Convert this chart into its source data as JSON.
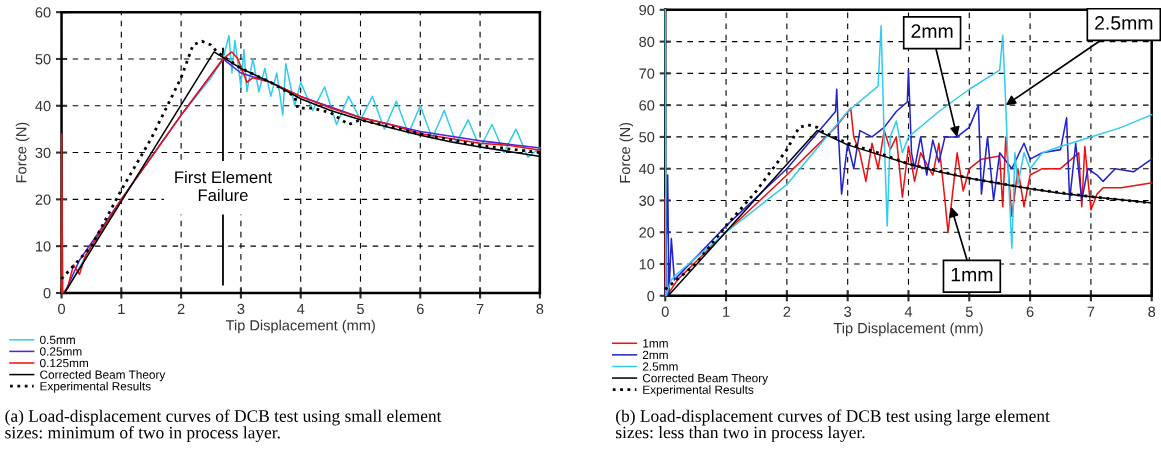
{
  "chart_data": [
    {
      "type": "line",
      "xlabel": "Tip Displacement (mm)",
      "ylabel": "Force (N)",
      "xlim": [
        0,
        8
      ],
      "ylim": [
        0,
        60
      ],
      "xticks": [
        0,
        1,
        2,
        3,
        4,
        5,
        6,
        7,
        8
      ],
      "yticks": [
        0,
        10,
        20,
        30,
        40,
        50,
        60
      ],
      "grid": true,
      "legend": "bottom left",
      "series": [
        {
          "name": "0.5mm",
          "color": "#33ccee",
          "line_style": "solid",
          "x": [
            0.1,
            0.5,
            1,
            1.5,
            2,
            2.5,
            2.7,
            2.8,
            2.85,
            2.9,
            3.0,
            3.05,
            3.1,
            3.2,
            3.3,
            3.4,
            3.5,
            3.6,
            3.7,
            3.75,
            3.9,
            4.0,
            4.2,
            4.4,
            4.6,
            4.8,
            5.0,
            5.2,
            5.4,
            5.6,
            5.8,
            6.0,
            6.2,
            6.4,
            6.6,
            6.8,
            7.0,
            7.2,
            7.4,
            7.6,
            7.8,
            8.0
          ],
          "values": [
            1,
            10,
            20,
            29,
            38,
            46,
            50,
            55,
            47,
            54,
            44,
            52,
            43,
            50,
            43,
            48,
            42,
            47,
            38,
            49,
            40,
            45,
            39,
            44,
            36,
            42,
            37,
            42,
            35,
            41,
            34,
            40,
            33,
            39,
            32,
            37,
            31,
            36,
            30,
            35,
            29,
            31
          ]
        },
        {
          "name": "0.25mm",
          "color": "#5522dd",
          "line_style": "solid",
          "x": [
            0.05,
            0.3,
            1,
            2,
            2.7,
            3,
            3.5,
            4,
            5,
            6,
            7,
            8
          ],
          "values": [
            0,
            7,
            20,
            38,
            50,
            47,
            45,
            42,
            37.5,
            34.5,
            32.5,
            31
          ]
        },
        {
          "name": "0.125mm",
          "color": "#ee1111",
          "line_style": "solid",
          "x": [
            0,
            0,
            0.02,
            0.1,
            0.2,
            0.3,
            0.4,
            1,
            2,
            2.7,
            2.85,
            2.95,
            3.1,
            3.2,
            3.5,
            4,
            4.5,
            5,
            5.5,
            6,
            6.5,
            7,
            7.5,
            8
          ],
          "values": [
            0,
            34,
            0,
            1,
            6,
            4,
            8,
            20,
            38,
            50,
            51.5,
            50,
            45,
            46,
            45,
            42,
            39.5,
            37.5,
            36,
            34,
            33,
            32,
            31.5,
            30.5
          ]
        },
        {
          "name": "Corrected Beam Theory",
          "color": "#000000",
          "line_style": "solid",
          "x": [
            0.05,
            2.55,
            3,
            3.5,
            4,
            4.5,
            5,
            5.5,
            6,
            6.5,
            7,
            7.5,
            8
          ],
          "values": [
            0,
            51.5,
            48,
            45,
            41.5,
            39,
            37,
            35.3,
            33.7,
            32.3,
            31.2,
            30.2,
            29.2
          ]
        },
        {
          "name": "Experimental Results",
          "color": "#000000",
          "line_style": "dotted",
          "x": [
            0,
            0.5,
            1,
            1.5,
            2,
            2.2,
            2.35,
            2.5,
            2.6,
            3,
            3.5,
            3.9,
            3.95,
            4.2,
            4.5,
            4.8,
            5,
            5.5,
            6,
            7,
            8
          ],
          "values": [
            3,
            10,
            22,
            33,
            46,
            53,
            53.8,
            53,
            51.5,
            48,
            45,
            42,
            39.5,
            39.5,
            38.5,
            36,
            37,
            35.5,
            34,
            31.5,
            30
          ]
        }
      ],
      "ref_lines": [
        {
          "axis": "x",
          "value": 2.7,
          "label": "First Element\nFailure",
          "color": "#000000"
        }
      ],
      "annotations": [
        "(a) Load-displacement curves of DCB test using small element\nsizes: minimum of two in process layer."
      ]
    },
    {
      "type": "line",
      "xlabel": "Tip Displacement (mm)",
      "ylabel": "Force (N)",
      "xlim": [
        0,
        8
      ],
      "ylim": [
        0,
        90
      ],
      "xticks": [
        0,
        1,
        2,
        3,
        4,
        5,
        6,
        7,
        8
      ],
      "yticks": [
        0,
        10,
        20,
        30,
        40,
        50,
        60,
        70,
        80,
        90
      ],
      "grid": true,
      "legend": "bottom left",
      "series": [
        {
          "name": "1mm",
          "color": "#ee1111",
          "line_style": "solid",
          "x": [
            0,
            0,
            0.03,
            0.2,
            1,
            2,
            2.8,
            3.05,
            3.1,
            3.2,
            3.3,
            3.4,
            3.5,
            3.6,
            3.7,
            3.8,
            3.9,
            4.0,
            4.1,
            4.2,
            4.4,
            4.5,
            4.6,
            4.65,
            4.7,
            4.8,
            4.9,
            5.0,
            5.2,
            5.5,
            5.55,
            5.6,
            5.7,
            5.8,
            5.9,
            6.0,
            6.2,
            6.5,
            6.8,
            6.85,
            6.9,
            7.0,
            7.1,
            7.2,
            7.5,
            8
          ],
          "values": [
            0,
            31,
            0,
            5,
            20,
            38,
            53,
            59,
            50,
            45,
            36,
            48,
            40,
            52,
            46,
            50,
            31,
            47,
            36,
            45,
            38,
            48,
            30,
            20,
            28,
            45,
            33,
            40,
            43,
            44,
            28,
            50,
            25,
            40,
            28,
            38,
            40,
            40,
            45,
            28,
            47,
            27,
            32,
            34,
            34,
            35.5
          ]
        },
        {
          "name": "2mm",
          "color": "#2222cc",
          "line_style": "solid",
          "x": [
            0,
            0.04,
            0.06,
            0.1,
            0.15,
            0.5,
            1,
            2,
            2.8,
            2.82,
            2.85,
            2.9,
            3.0,
            3.1,
            3.2,
            3.4,
            3.6,
            3.8,
            3.98,
            4.0,
            4.05,
            4.1,
            4.2,
            4.3,
            4.4,
            4.5,
            4.6,
            4.8,
            5.0,
            5.15,
            5.2,
            5.3,
            5.4,
            5.5,
            5.7,
            5.9,
            6.0,
            6.2,
            6.5,
            6.6,
            6.65,
            6.75,
            6.85,
            6.95,
            7.1,
            7.2,
            7.4,
            7.7,
            8
          ],
          "values": [
            0,
            38,
            0,
            18,
            5,
            12,
            22,
            40,
            58,
            65,
            50,
            32,
            48,
            40,
            52,
            50,
            53,
            58,
            61,
            71,
            45,
            40,
            50,
            38,
            49,
            42,
            50,
            50,
            53,
            60,
            32,
            50,
            30,
            45,
            40,
            48,
            43,
            45,
            46,
            56,
            30,
            48,
            30,
            40,
            38,
            36,
            40,
            39,
            43
          ]
        },
        {
          "name": "2.5mm",
          "color": "#33ccee",
          "line_style": "solid",
          "x": [
            0,
            0.01,
            0.1,
            0.2,
            1,
            2,
            3,
            3.5,
            3.55,
            3.6,
            3.65,
            3.7,
            3.8,
            3.9,
            4.0,
            4.5,
            5,
            5.5,
            5.55,
            5.6,
            5.65,
            5.7,
            5.75,
            5.8,
            5.9,
            6.0,
            6.2,
            6.5,
            7,
            7.5,
            8
          ],
          "values": [
            90,
            0,
            5,
            7,
            20,
            35,
            58,
            66,
            85,
            50,
            22,
            50,
            55,
            45,
            50,
            58,
            65,
            71,
            82,
            60,
            35,
            15,
            45,
            35,
            45,
            40,
            45,
            47,
            50,
            53,
            57
          ]
        },
        {
          "name": "Corrected Beam Theory",
          "color": "#000000",
          "line_style": "solid",
          "x": [
            0.05,
            2.5,
            3,
            3.5,
            4,
            4.5,
            5,
            5.5,
            6,
            6.5,
            7,
            7.5,
            8
          ],
          "values": [
            0,
            52,
            47.5,
            44.5,
            41.5,
            39,
            37,
            35.3,
            33.7,
            32.3,
            31.2,
            30.2,
            29.2
          ]
        },
        {
          "name": "Experimental Results",
          "color": "#000000",
          "line_style": "dotted",
          "x": [
            0,
            0.5,
            1,
            1.5,
            2,
            2.2,
            2.35,
            2.5,
            2.6,
            3,
            3.5,
            4,
            5,
            6,
            7,
            8
          ],
          "values": [
            2,
            10,
            22,
            33,
            46,
            53,
            53.8,
            53,
            51.5,
            48,
            45,
            41.5,
            37,
            33.7,
            31.2,
            29.2
          ]
        }
      ],
      "annotations": [
        {
          "text": "2mm",
          "x": 4.8,
          "y": 50
        },
        {
          "text": "2.5mm",
          "x": 5.6,
          "y": 60
        },
        {
          "text": "1mm",
          "x": 4.7,
          "y": 28
        },
        "(b) Load-displacement curves of DCB test using large element\nsizes: less than two in process layer."
      ]
    }
  ]
}
